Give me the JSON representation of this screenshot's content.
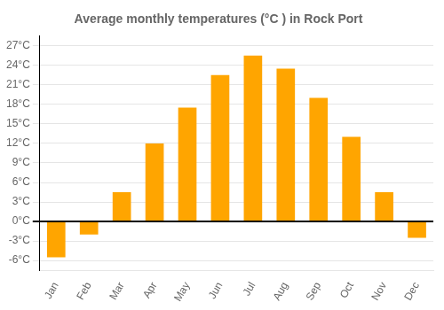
{
  "chart_data": {
    "type": "bar",
    "title": "Average monthly temperatures (°C ) in Rock Port",
    "categories": [
      "Jan",
      "Feb",
      "Mar",
      "Apr",
      "May",
      "Jun",
      "Jul",
      "Aug",
      "Sep",
      "Oct",
      "Nov",
      "Dec"
    ],
    "values": [
      -5.5,
      -2.0,
      4.5,
      12.0,
      17.5,
      22.5,
      25.5,
      23.5,
      19.0,
      13.0,
      4.5,
      -2.5
    ],
    "color": "#FFA500",
    "ylim": [
      -7.5,
      28.5
    ],
    "yticks": [
      {
        "value": -6,
        "label": "-6°C"
      },
      {
        "value": -3,
        "label": "-3°C"
      },
      {
        "value": 0,
        "label": "0°C"
      },
      {
        "value": 3,
        "label": "3°C"
      },
      {
        "value": 6,
        "label": "6°C"
      },
      {
        "value": 9,
        "label": "9°C"
      },
      {
        "value": 12,
        "label": "12°C"
      },
      {
        "value": 15,
        "label": "15°C"
      },
      {
        "value": 18,
        "label": "18°C"
      },
      {
        "value": 21,
        "label": "21°C"
      },
      {
        "value": 24,
        "label": "24°C"
      },
      {
        "value": 27,
        "label": "27°C"
      }
    ],
    "grid": true
  }
}
